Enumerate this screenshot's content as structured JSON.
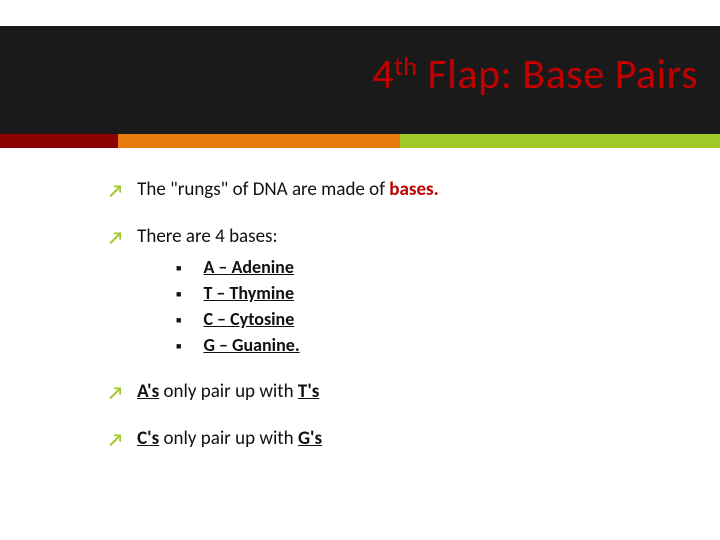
{
  "title_prefix": "4",
  "title_sup": "th",
  "title_rest": " Flap: Base Pairs",
  "colors": {
    "title": "#c00000",
    "stripe_red": "#8b0000",
    "stripe_orange": "#e87a0d",
    "stripe_green": "#a0c828",
    "header_bg": "#1a1a1a"
  },
  "line1_a": "The \"rungs\" of DNA are made of ",
  "line1_b": "bases.",
  "line2": "There are 4 bases:",
  "bases": [
    "A – Adenine",
    "T – Thymine",
    "C – Cytosine",
    "G – Guanine."
  ],
  "line3_a": "A's",
  "line3_b": " only pair up with ",
  "line3_c": "T's",
  "line4_a": "C's",
  "line4_b": " only pair up with ",
  "line4_c": "G's"
}
